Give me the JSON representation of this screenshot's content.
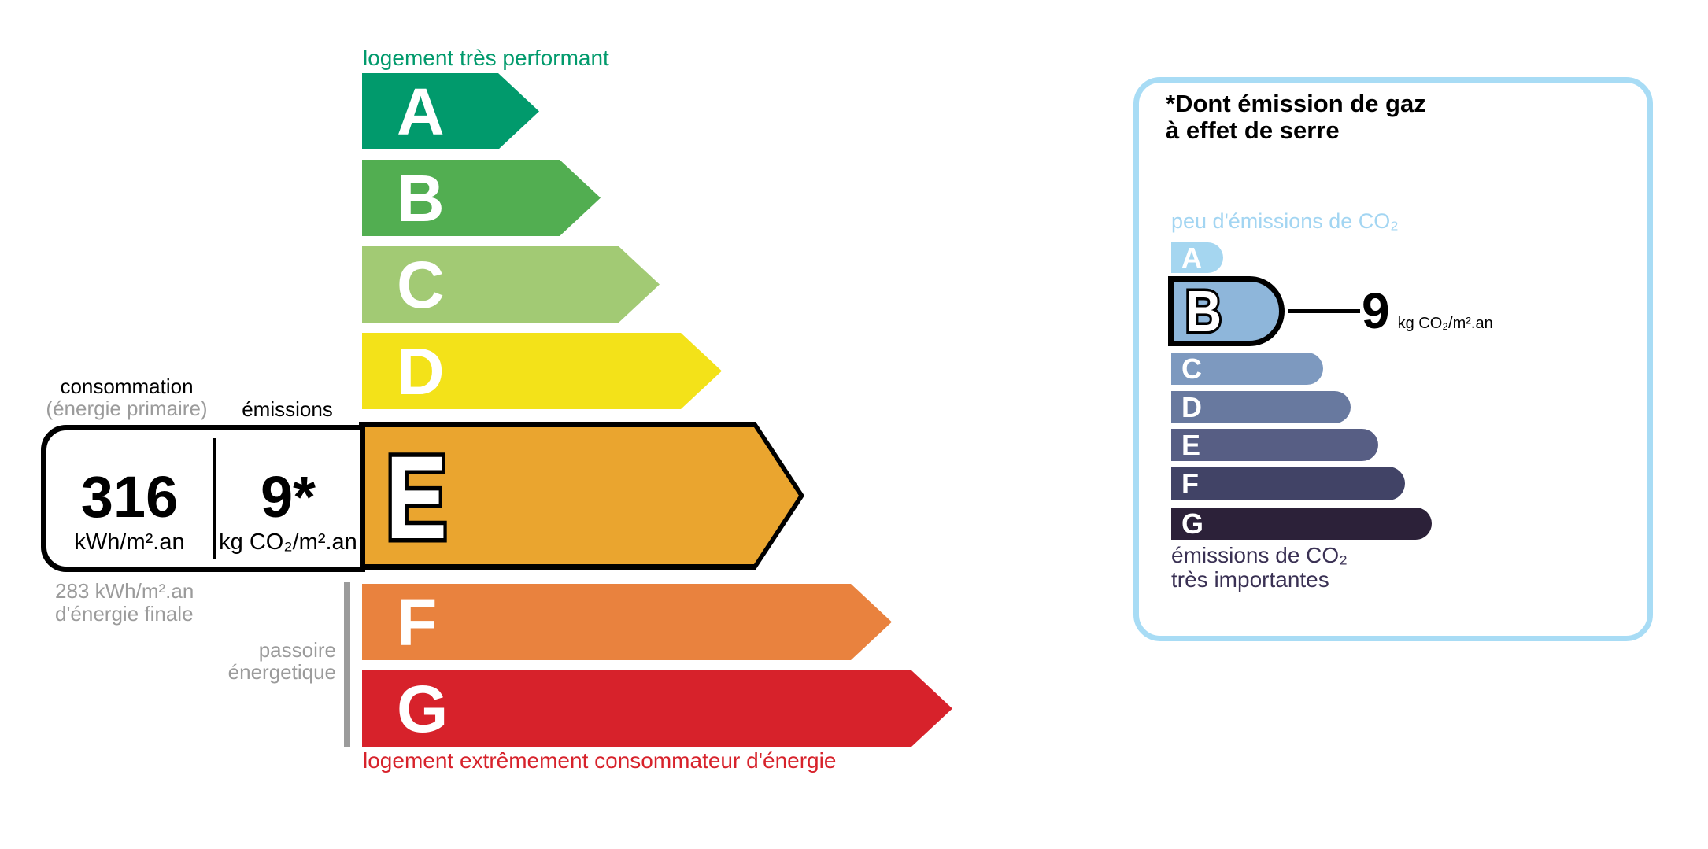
{
  "energy_label": {
    "top_note": "logement très performant",
    "bottom_note": "logement extrêmement consommateur d'énergie",
    "columns": {
      "consumption_title": "consommation",
      "consumption_subtitle": "(énergie primaire)",
      "emissions_title": "émissions"
    },
    "reading": {
      "consumption_value": "316",
      "consumption_unit": "kWh/m².an",
      "emissions_value": "9*",
      "emissions_unit": "kg CO₂/m².an",
      "selected_class": "E"
    },
    "final_energy": {
      "line1": "283 kWh/m².an",
      "line2": "d'énergie finale"
    },
    "energy_sieve": {
      "line1": "passoire",
      "line2": "énergetique"
    },
    "scale": [
      {
        "letter": "A",
        "color": "#019a6c"
      },
      {
        "letter": "B",
        "color": "#52ae51"
      },
      {
        "letter": "C",
        "color": "#a2ca74"
      },
      {
        "letter": "D",
        "color": "#f3e219"
      },
      {
        "letter": "E",
        "color": "#eaa52f"
      },
      {
        "letter": "F",
        "color": "#e9823e"
      },
      {
        "letter": "G",
        "color": "#d7222b"
      }
    ],
    "accent_green": "#019a6c",
    "accent_red": "#d7222b",
    "muted_gray": "#9b9b9b"
  },
  "ges_panel": {
    "title": {
      "line1": "*Dont émission de gaz",
      "line2": "à effet de serre"
    },
    "top_note": "peu d'émissions de CO₂",
    "bottom_note": {
      "line1": "émissions de CO₂",
      "line2": "très importantes"
    },
    "reading": {
      "value": "9",
      "unit": "kg CO₂/m².an",
      "selected_class": "B"
    },
    "scale": [
      {
        "letter": "A",
        "color": "#a5d6f0"
      },
      {
        "letter": "B",
        "color": "#8eb6da"
      },
      {
        "letter": "C",
        "color": "#7d99bf"
      },
      {
        "letter": "D",
        "color": "#68799f"
      },
      {
        "letter": "E",
        "color": "#575e84"
      },
      {
        "letter": "F",
        "color": "#414366"
      },
      {
        "letter": "G",
        "color": "#2c2139"
      }
    ],
    "border_color": "#a8dcf5",
    "label_blue": "#a2d5f2",
    "dark_text": "#3a3154"
  },
  "chart_data": [
    {
      "type": "bar",
      "title": "DPE — consommation (énergie primaire)",
      "categories": [
        "A",
        "B",
        "C",
        "D",
        "E",
        "F",
        "G"
      ],
      "values": [
        225,
        303,
        378,
        457,
        566,
        673,
        750
      ],
      "value_meaning": "relative arrow lengths (px), decorative scale",
      "selected_class": "E",
      "consumption_kwh_m2_an": 316,
      "emissions_kg_co2_m2_an": 9,
      "final_energy_kwh_m2_an": 283,
      "annotations": [
        "logement très performant",
        "logement extrêmement consommateur d'énergie",
        "passoire énergetique"
      ]
    },
    {
      "type": "bar",
      "title": "*Dont émission de gaz à effet de serre",
      "categories": [
        "A",
        "B",
        "C",
        "D",
        "E",
        "F",
        "G"
      ],
      "values": [
        66,
        148,
        193,
        228,
        263,
        297,
        331
      ],
      "value_meaning": "relative bar lengths (px), decorative scale",
      "selected_class": "B",
      "ges_kg_co2_m2_an": 9,
      "annotations": [
        "peu d'émissions de CO₂",
        "émissions de CO₂ très importantes"
      ]
    }
  ]
}
